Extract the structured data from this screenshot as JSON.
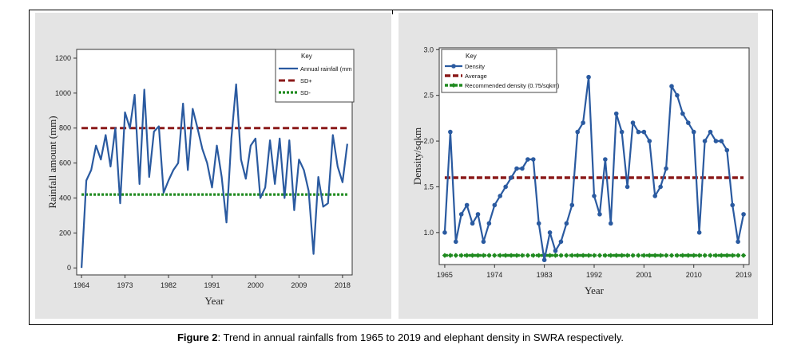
{
  "caption": {
    "label": "Figure 2",
    "text": ": Trend in annual rainfalls from 1965 to 2019 and elephant density in SWRA respectively."
  },
  "colors": {
    "series_blue": "#2a5aa0",
    "sd_plus_red": "#8b1a1a",
    "sd_minus_green": "#1f8a1f",
    "panel_bg": "#e4e4e4"
  },
  "chart_data": [
    {
      "type": "line",
      "xlabel": "Year",
      "ylabel": "Rainfall amount (mm)",
      "xlim": [
        1963,
        2020
      ],
      "ylim": [
        -40,
        1250
      ],
      "xticks": [
        "1964",
        "1973",
        "1982",
        "1991",
        "2000",
        "2009",
        "2018"
      ],
      "yticks": [
        "0",
        "200",
        "400",
        "600",
        "800",
        "1000",
        "1200"
      ],
      "legend": {
        "title": "Key",
        "placement": "top-right",
        "entries": [
          "Annual rainfall (mm",
          "SD+",
          "SD-"
        ]
      },
      "series": [
        {
          "name": "Annual rainfall (mm",
          "x": [
            1964,
            1965,
            1966,
            1967,
            1968,
            1969,
            1970,
            1971,
            1972,
            1973,
            1974,
            1975,
            1976,
            1977,
            1978,
            1979,
            1980,
            1981,
            1982,
            1983,
            1984,
            1985,
            1986,
            1987,
            1988,
            1989,
            1990,
            1991,
            1992,
            1993,
            1994,
            1995,
            1996,
            1997,
            1998,
            1999,
            2000,
            2001,
            2002,
            2003,
            2004,
            2005,
            2006,
            2007,
            2008,
            2009,
            2010,
            2011,
            2012,
            2013,
            2014,
            2015,
            2016,
            2017,
            2018,
            2019
          ],
          "values": [
            0,
            500,
            560,
            700,
            620,
            760,
            580,
            800,
            370,
            890,
            800,
            990,
            480,
            1020,
            520,
            780,
            810,
            430,
            500,
            560,
            600,
            940,
            560,
            910,
            800,
            680,
            600,
            460,
            700,
            520,
            260,
            740,
            1050,
            620,
            510,
            700,
            740,
            400,
            460,
            730,
            480,
            740,
            400,
            730,
            330,
            620,
            560,
            440,
            80,
            520,
            350,
            370,
            760,
            580,
            490,
            710
          ]
        },
        {
          "name": "SD+",
          "x": [
            1964,
            2019
          ],
          "values": [
            800,
            800
          ]
        },
        {
          "name": "SD-",
          "x": [
            1964,
            2019
          ],
          "values": [
            420,
            420
          ]
        }
      ]
    },
    {
      "type": "line",
      "xlabel": "Year",
      "ylabel": "Density/sqkm",
      "xlim": [
        1964,
        2020
      ],
      "ylim": [
        0.65,
        3.02
      ],
      "xticks": [
        "1965",
        "1974",
        "1983",
        "1992",
        "2001",
        "2010",
        "2019"
      ],
      "yticks": [
        "1.0",
        "1.5",
        "2.0",
        "2.5",
        "3.0"
      ],
      "legend": {
        "title": "Key",
        "placement": "top-left",
        "entries": [
          "Density",
          "Average",
          "Recommended density (0.75/sqkm)"
        ]
      },
      "series": [
        {
          "name": "Density",
          "x": [
            1965,
            1966,
            1967,
            1968,
            1969,
            1970,
            1971,
            1972,
            1973,
            1974,
            1975,
            1976,
            1977,
            1978,
            1979,
            1980,
            1981,
            1982,
            1983,
            1984,
            1985,
            1986,
            1987,
            1988,
            1989,
            1990,
            1991,
            1992,
            1993,
            1994,
            1995,
            1996,
            1997,
            1998,
            1999,
            2000,
            2001,
            2002,
            2003,
            2004,
            2005,
            2006,
            2007,
            2008,
            2009,
            2010,
            2011,
            2012,
            2013,
            2014,
            2015,
            2016,
            2017,
            2018,
            2019
          ],
          "values": [
            1.0,
            2.1,
            0.9,
            1.2,
            1.3,
            1.1,
            1.2,
            0.9,
            1.1,
            1.3,
            1.4,
            1.5,
            1.6,
            1.7,
            1.7,
            1.8,
            1.8,
            1.1,
            0.7,
            1.0,
            0.8,
            0.9,
            1.1,
            1.3,
            2.1,
            2.2,
            2.7,
            1.4,
            1.2,
            1.8,
            1.1,
            2.3,
            2.1,
            1.5,
            2.2,
            2.1,
            2.1,
            2.0,
            1.4,
            1.5,
            1.7,
            2.6,
            2.5,
            2.3,
            2.2,
            2.1,
            1.0,
            2.0,
            2.1,
            2.0,
            2.0,
            1.9,
            1.3,
            0.9,
            1.2
          ]
        },
        {
          "name": "Average",
          "x": [
            1965,
            2019
          ],
          "values": [
            1.6,
            1.6
          ]
        },
        {
          "name": "Recommended density (0.75/sqkm)",
          "x": [
            1965,
            2019
          ],
          "values": [
            0.75,
            0.75
          ]
        }
      ]
    }
  ]
}
